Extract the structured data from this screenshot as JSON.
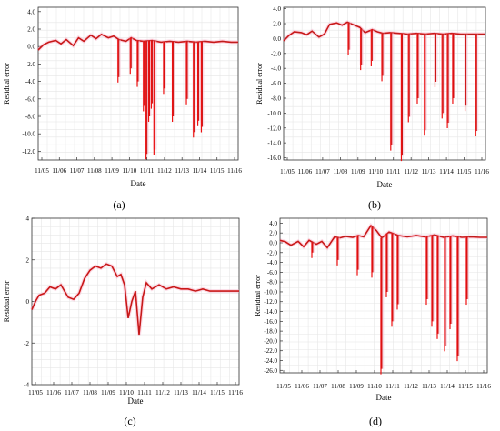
{
  "chart_data": [
    {
      "type": "line",
      "panel": "a",
      "xlabel": "Date",
      "ylabel": "Residual error",
      "ylim": [
        -13,
        4.5
      ],
      "y_ticks": [
        "4.0",
        "2.0",
        "0.0",
        "-2.0",
        "-4.0",
        "-6.0",
        "-8.0",
        "-10.0",
        "-12.0"
      ],
      "y_tick_values": [
        4,
        2,
        0,
        -2,
        -4,
        -6,
        -8,
        -10,
        -12
      ],
      "x_ticks": [
        "11/05",
        "11/06",
        "11/07",
        "11/08",
        "11/09",
        "11/10",
        "11/11",
        "11/12",
        "11/13",
        "11/14",
        "11/15",
        "11/16"
      ],
      "grid": true,
      "series_color": "#b22222",
      "base": [
        [
          0,
          -0.4
        ],
        [
          0.3,
          0.2
        ],
        [
          0.6,
          0.5
        ],
        [
          1.0,
          0.7
        ],
        [
          1.3,
          0.3
        ],
        [
          1.6,
          0.8
        ],
        [
          2.0,
          0.1
        ],
        [
          2.3,
          1.0
        ],
        [
          2.6,
          0.6
        ],
        [
          3.0,
          1.3
        ],
        [
          3.3,
          0.9
        ],
        [
          3.6,
          1.4
        ],
        [
          4.0,
          1.0
        ],
        [
          4.3,
          1.2
        ],
        [
          4.6,
          0.8
        ],
        [
          5.0,
          0.6
        ],
        [
          5.3,
          1.0
        ],
        [
          5.6,
          0.7
        ],
        [
          6.0,
          0.6
        ],
        [
          6.5,
          0.7
        ],
        [
          7.0,
          0.5
        ],
        [
          7.5,
          0.6
        ],
        [
          8.0,
          0.5
        ],
        [
          8.5,
          0.6
        ],
        [
          9.0,
          0.5
        ],
        [
          9.5,
          0.6
        ],
        [
          10.0,
          0.5
        ],
        [
          10.5,
          0.6
        ],
        [
          11.0,
          0.5
        ],
        [
          11.4,
          0.5
        ]
      ],
      "spikes": [
        [
          4.6,
          -3.5
        ],
        [
          5.3,
          -2.5
        ],
        [
          5.7,
          -4
        ],
        [
          6.05,
          -6.8
        ],
        [
          6.2,
          -12.3
        ],
        [
          6.35,
          -8
        ],
        [
          6.5,
          -6.5
        ],
        [
          6.65,
          -11.8
        ],
        [
          7.7,
          -8
        ],
        [
          8.5,
          -6
        ],
        [
          8.9,
          -9.8
        ],
        [
          9.15,
          -8.5
        ],
        [
          9.35,
          -9.2
        ],
        [
          7.2,
          -4.8
        ]
      ]
    },
    {
      "type": "line",
      "panel": "b",
      "xlabel": "Date",
      "ylabel": "Residual error",
      "ylim": [
        -16.3,
        4.2
      ],
      "y_ticks": [
        "4.0",
        "2.0",
        "0.0",
        "-2.0",
        "-4.0",
        "-6.0",
        "-8.0",
        "-10.0",
        "-12.0",
        "-14.0",
        "-16.0"
      ],
      "y_tick_values": [
        4,
        2,
        0,
        -2,
        -4,
        -6,
        -8,
        -10,
        -12,
        -14,
        -16
      ],
      "x_ticks": [
        "11/05",
        "11/06",
        "11/07",
        "11/08",
        "11/09",
        "11/10",
        "11/11",
        "11/12",
        "11/13",
        "11/14",
        "11/15",
        "11/16"
      ],
      "grid": true,
      "series_color": "#b22222",
      "base": [
        [
          0,
          -0.3
        ],
        [
          0.3,
          0.4
        ],
        [
          0.6,
          0.9
        ],
        [
          1.0,
          0.8
        ],
        [
          1.3,
          0.5
        ],
        [
          1.6,
          1.0
        ],
        [
          2.0,
          0.2
        ],
        [
          2.3,
          0.6
        ],
        [
          2.6,
          1.9
        ],
        [
          3.0,
          2.1
        ],
        [
          3.3,
          1.8
        ],
        [
          3.6,
          2.2
        ],
        [
          4.0,
          1.8
        ],
        [
          4.3,
          1.5
        ],
        [
          4.6,
          0.8
        ],
        [
          5.0,
          1.2
        ],
        [
          5.3,
          0.9
        ],
        [
          5.6,
          0.7
        ],
        [
          6.0,
          0.8
        ],
        [
          6.5,
          0.7
        ],
        [
          7.0,
          0.6
        ],
        [
          7.5,
          0.7
        ],
        [
          8.0,
          0.6
        ],
        [
          8.5,
          0.7
        ],
        [
          9.0,
          0.6
        ],
        [
          9.5,
          0.7
        ],
        [
          10.0,
          0.6
        ],
        [
          10.5,
          0.6
        ],
        [
          11.0,
          0.6
        ],
        [
          11.4,
          0.6
        ]
      ],
      "spikes": [
        [
          3.7,
          -1.5
        ],
        [
          4.4,
          -3.5
        ],
        [
          5.0,
          -3.0
        ],
        [
          5.6,
          -5.0
        ],
        [
          6.1,
          -14.3
        ],
        [
          6.7,
          -15.7
        ],
        [
          7.1,
          -10.5
        ],
        [
          7.6,
          -8.0
        ],
        [
          8.0,
          -12.3
        ],
        [
          8.6,
          -5.8
        ],
        [
          9.0,
          -10.0
        ],
        [
          9.3,
          -11.3
        ],
        [
          9.6,
          -8.0
        ],
        [
          10.3,
          -9.0
        ],
        [
          10.9,
          -12.4
        ]
      ]
    },
    {
      "type": "line",
      "panel": "c",
      "xlabel": "Date",
      "ylabel": "Residual error",
      "ylim": [
        -4,
        4
      ],
      "y_ticks": [
        "4",
        "2",
        "0",
        "-2",
        "-4"
      ],
      "y_tick_values": [
        4,
        2,
        0,
        -2,
        -4
      ],
      "x_ticks": [
        "11/05",
        "11/06",
        "11/07",
        "11/08",
        "11/09",
        "11/10",
        "11/11",
        "11/12",
        "11/13",
        "11/14",
        "11/15",
        "11/16"
      ],
      "grid": true,
      "series_color": "#b22222",
      "base": [
        [
          0,
          -0.4
        ],
        [
          0.2,
          0.0
        ],
        [
          0.4,
          0.3
        ],
        [
          0.7,
          0.4
        ],
        [
          1.0,
          0.7
        ],
        [
          1.3,
          0.6
        ],
        [
          1.6,
          0.8
        ],
        [
          1.8,
          0.5
        ],
        [
          2.0,
          0.2
        ],
        [
          2.3,
          0.1
        ],
        [
          2.6,
          0.4
        ],
        [
          2.9,
          1.1
        ],
        [
          3.2,
          1.5
        ],
        [
          3.5,
          1.7
        ],
        [
          3.8,
          1.6
        ],
        [
          4.1,
          1.8
        ],
        [
          4.4,
          1.7
        ],
        [
          4.7,
          1.2
        ],
        [
          4.9,
          1.3
        ],
        [
          5.1,
          0.8
        ],
        [
          5.3,
          -0.8
        ],
        [
          5.5,
          0.0
        ],
        [
          5.7,
          0.5
        ],
        [
          5.9,
          -1.6
        ],
        [
          6.1,
          0.2
        ],
        [
          6.3,
          0.9
        ],
        [
          6.6,
          0.6
        ],
        [
          7.0,
          0.8
        ],
        [
          7.4,
          0.6
        ],
        [
          7.8,
          0.7
        ],
        [
          8.2,
          0.6
        ],
        [
          8.6,
          0.6
        ],
        [
          9.0,
          0.5
        ],
        [
          9.4,
          0.6
        ],
        [
          9.8,
          0.5
        ],
        [
          10.2,
          0.5
        ],
        [
          10.6,
          0.5
        ],
        [
          11.0,
          0.5
        ],
        [
          11.4,
          0.5
        ]
      ],
      "spikes": []
    },
    {
      "type": "line",
      "panel": "d",
      "xlabel": "Date",
      "ylabel": "Residual error",
      "ylim": [
        -26.5,
        5
      ],
      "y_ticks": [
        "4.0",
        "2.0",
        "0.0",
        "-2.0",
        "-4.0",
        "-6.0",
        "-8.0",
        "-10.0",
        "-12.0",
        "-14.0",
        "-16.0",
        "-18.0",
        "-20.0",
        "-22.0",
        "-24.0",
        "-26.0"
      ],
      "y_tick_values": [
        4,
        2,
        0,
        -2,
        -4,
        -6,
        -8,
        -10,
        -12,
        -14,
        -16,
        -18,
        -20,
        -22,
        -24,
        -26
      ],
      "x_ticks": [
        "11/05",
        "11/06",
        "11/07",
        "11/08",
        "11/09",
        "11/10",
        "11/11",
        "11/12",
        "11/13",
        "11/14",
        "11/15",
        "11/16"
      ],
      "grid": true,
      "series_color": "#b22222",
      "base": [
        [
          0,
          0.5
        ],
        [
          0.3,
          0.2
        ],
        [
          0.6,
          -0.5
        ],
        [
          1.0,
          0.3
        ],
        [
          1.3,
          -0.8
        ],
        [
          1.6,
          0.5
        ],
        [
          2.0,
          -0.3
        ],
        [
          2.3,
          0.3
        ],
        [
          2.6,
          -1.0
        ],
        [
          3.0,
          1.2
        ],
        [
          3.3,
          1.0
        ],
        [
          3.6,
          1.3
        ],
        [
          4.0,
          1.1
        ],
        [
          4.3,
          1.5
        ],
        [
          4.6,
          1.2
        ],
        [
          5.0,
          3.5
        ],
        [
          5.3,
          2.5
        ],
        [
          5.6,
          1.0
        ],
        [
          6.0,
          2.2
        ],
        [
          6.5,
          1.5
        ],
        [
          7.0,
          1.2
        ],
        [
          7.5,
          1.5
        ],
        [
          8.0,
          1.2
        ],
        [
          8.5,
          1.6
        ],
        [
          9.0,
          1.1
        ],
        [
          9.5,
          1.4
        ],
        [
          10.0,
          1.1
        ],
        [
          10.5,
          1.2
        ],
        [
          11.0,
          1.1
        ],
        [
          11.4,
          1.1
        ]
      ],
      "spikes": [
        [
          1.8,
          -2.0
        ],
        [
          3.2,
          -3.5
        ],
        [
          4.3,
          -5.5
        ],
        [
          5.1,
          -6.0
        ],
        [
          5.6,
          -25.7
        ],
        [
          5.9,
          -10.0
        ],
        [
          6.2,
          -16.0
        ],
        [
          6.5,
          -12.5
        ],
        [
          8.1,
          -11.5
        ],
        [
          8.4,
          -16.0
        ],
        [
          8.7,
          -18.5
        ],
        [
          9.1,
          -21.0
        ],
        [
          9.4,
          -16.5
        ],
        [
          9.8,
          -23.0
        ],
        [
          10.3,
          -11.5
        ]
      ]
    }
  ],
  "panel_labels": [
    "(a)",
    "(b)",
    "(c)",
    "(d)"
  ]
}
